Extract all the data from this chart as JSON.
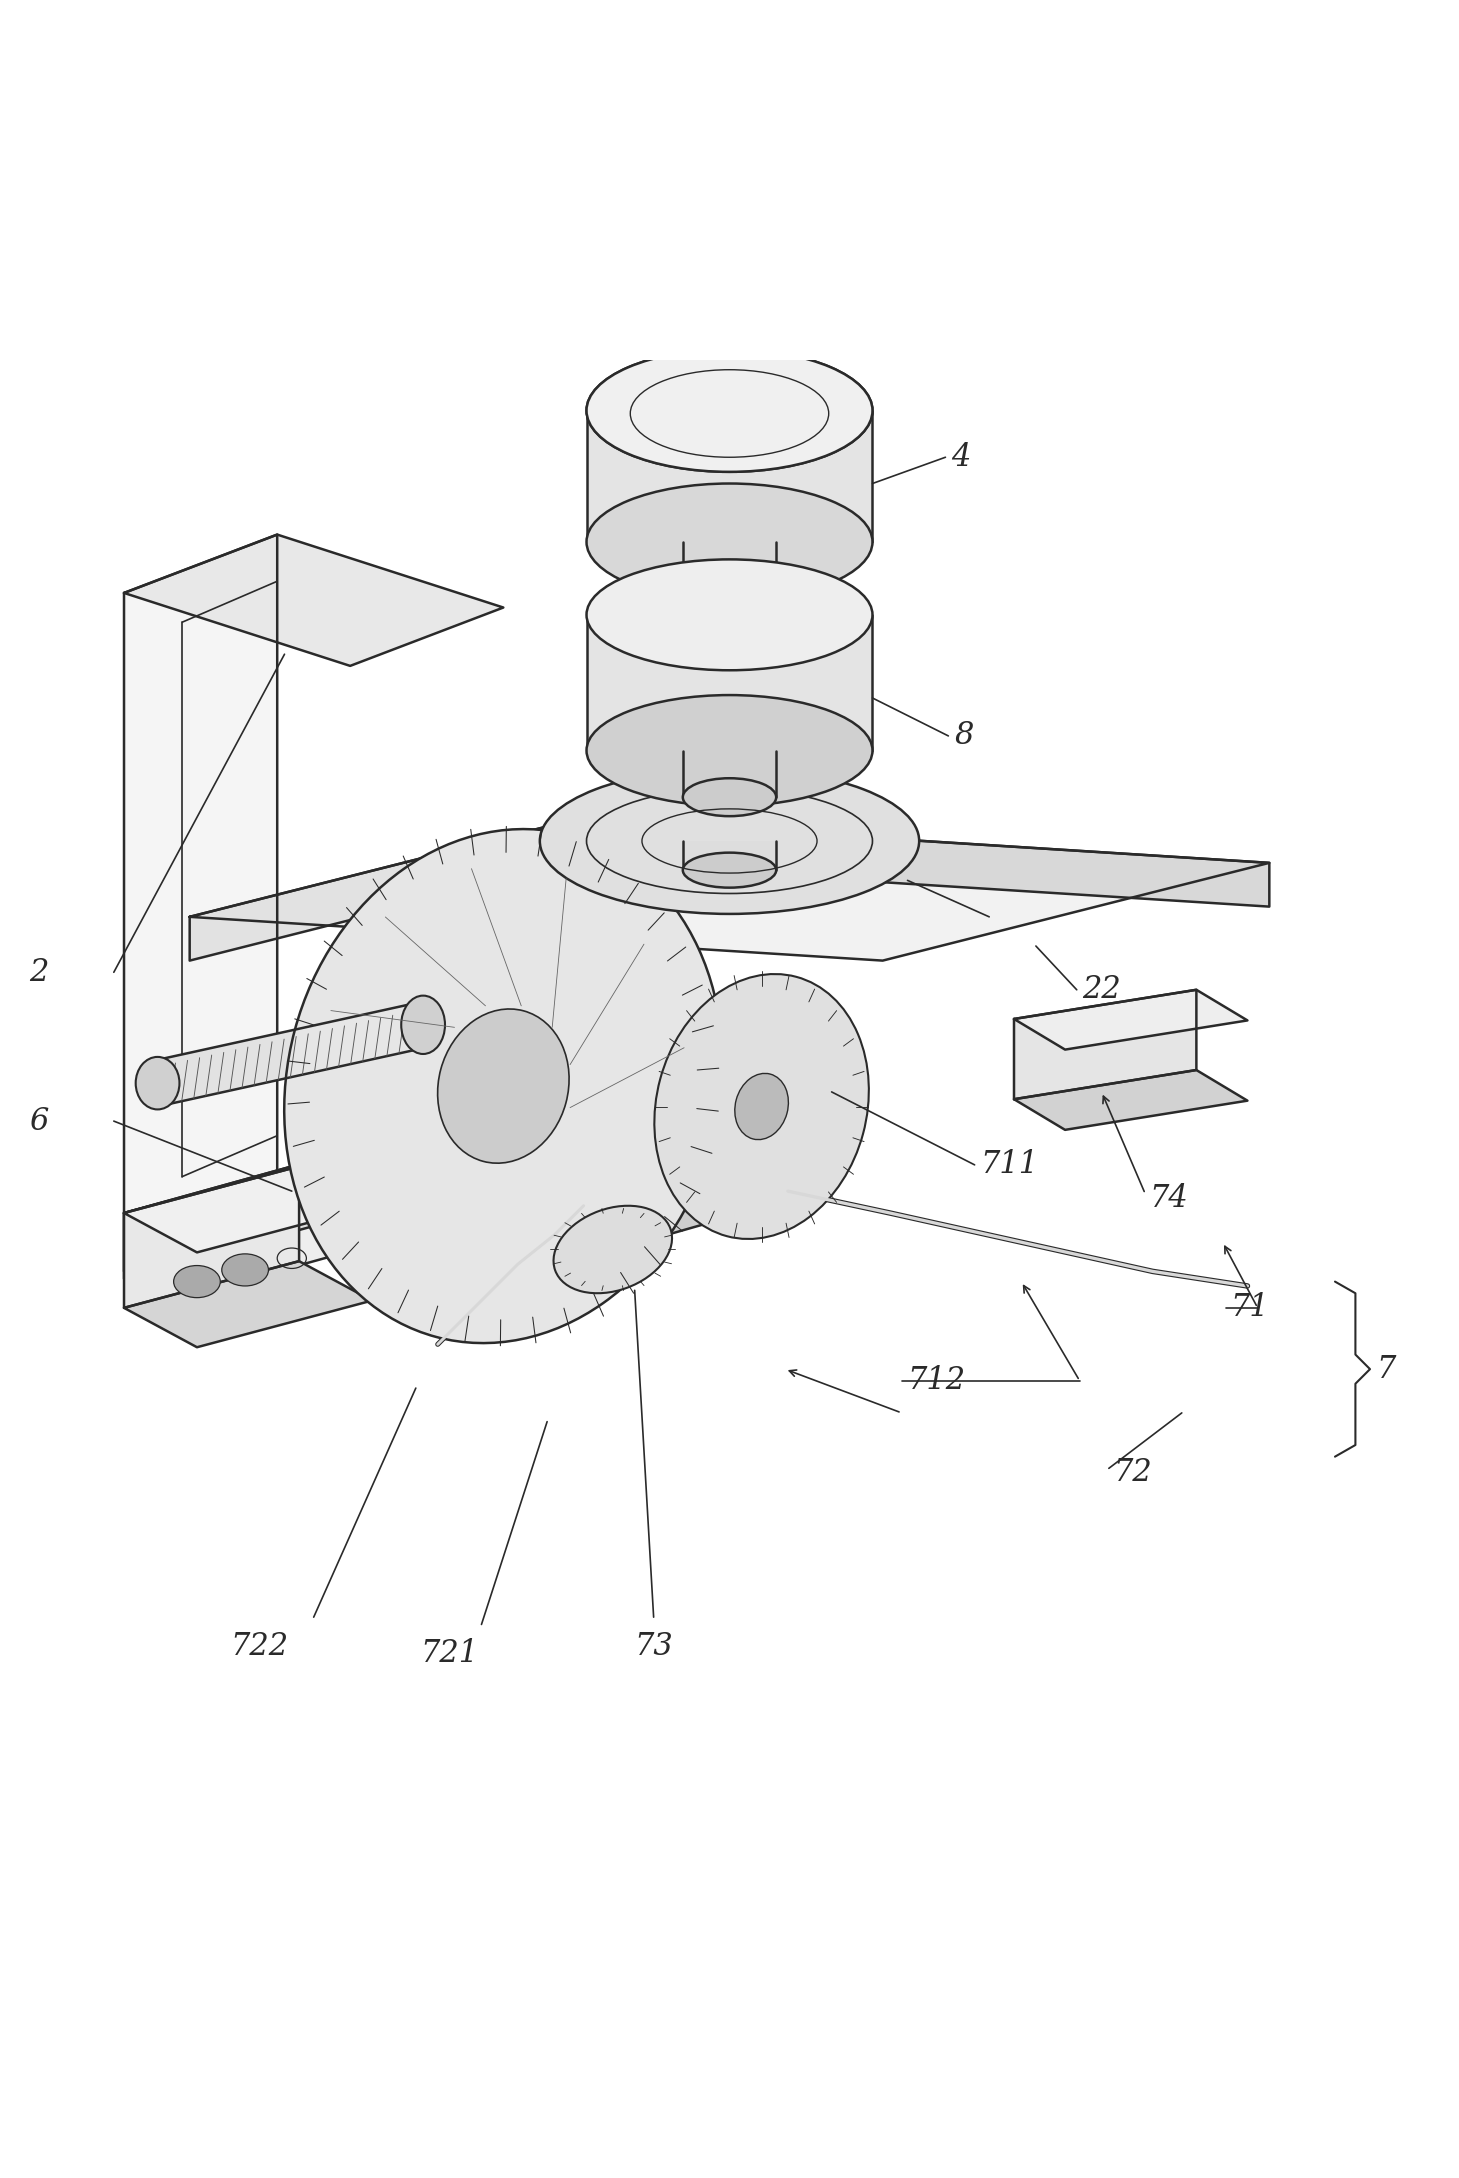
{
  "bg_color": "#ffffff",
  "line_color": "#2a2a2a",
  "line_width": 1.5,
  "label_color": "#2a2a2a",
  "label_fontsize": 22
}
